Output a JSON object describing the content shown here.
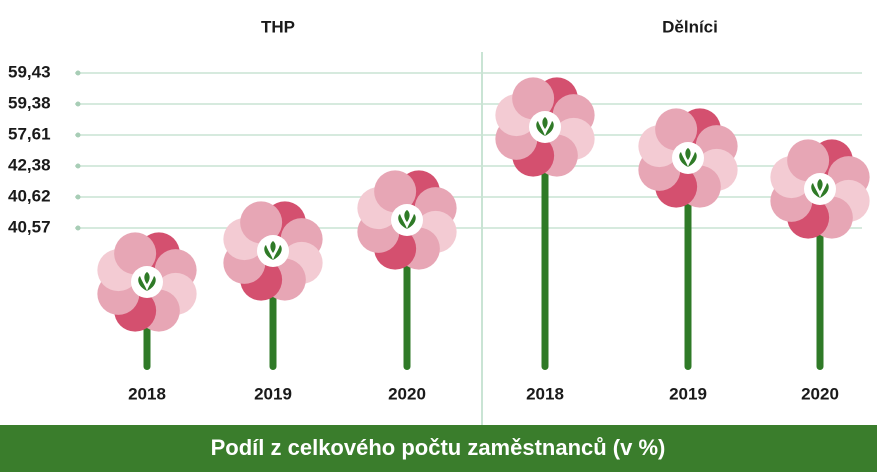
{
  "chart_data": {
    "type": "flower",
    "title": "Podíl z celkového počtu zaměstnanců (v %)",
    "categories": [
      "2018",
      "2019",
      "2020"
    ],
    "series": [
      {
        "name": "THP",
        "values": [
          40.57,
          40.62,
          42.38
        ]
      },
      {
        "name": "Dělníci",
        "values": [
          59.43,
          59.38,
          57.61
        ]
      }
    ],
    "yticks": [
      {
        "value": 40.57,
        "label": "40,57"
      },
      {
        "value": 40.62,
        "label": "40,62"
      },
      {
        "value": 42.38,
        "label": "42,38"
      },
      {
        "value": 57.61,
        "label": "57,61"
      },
      {
        "value": 59.38,
        "label": "59,38"
      },
      {
        "value": 59.43,
        "label": "59,43"
      }
    ],
    "grid": true,
    "petal_colors": [
      "#d4506f",
      "#e7a6b5",
      "#f3cbd3"
    ],
    "stem_color": "#2f7a27",
    "banner_color": "#3a7d2c"
  }
}
